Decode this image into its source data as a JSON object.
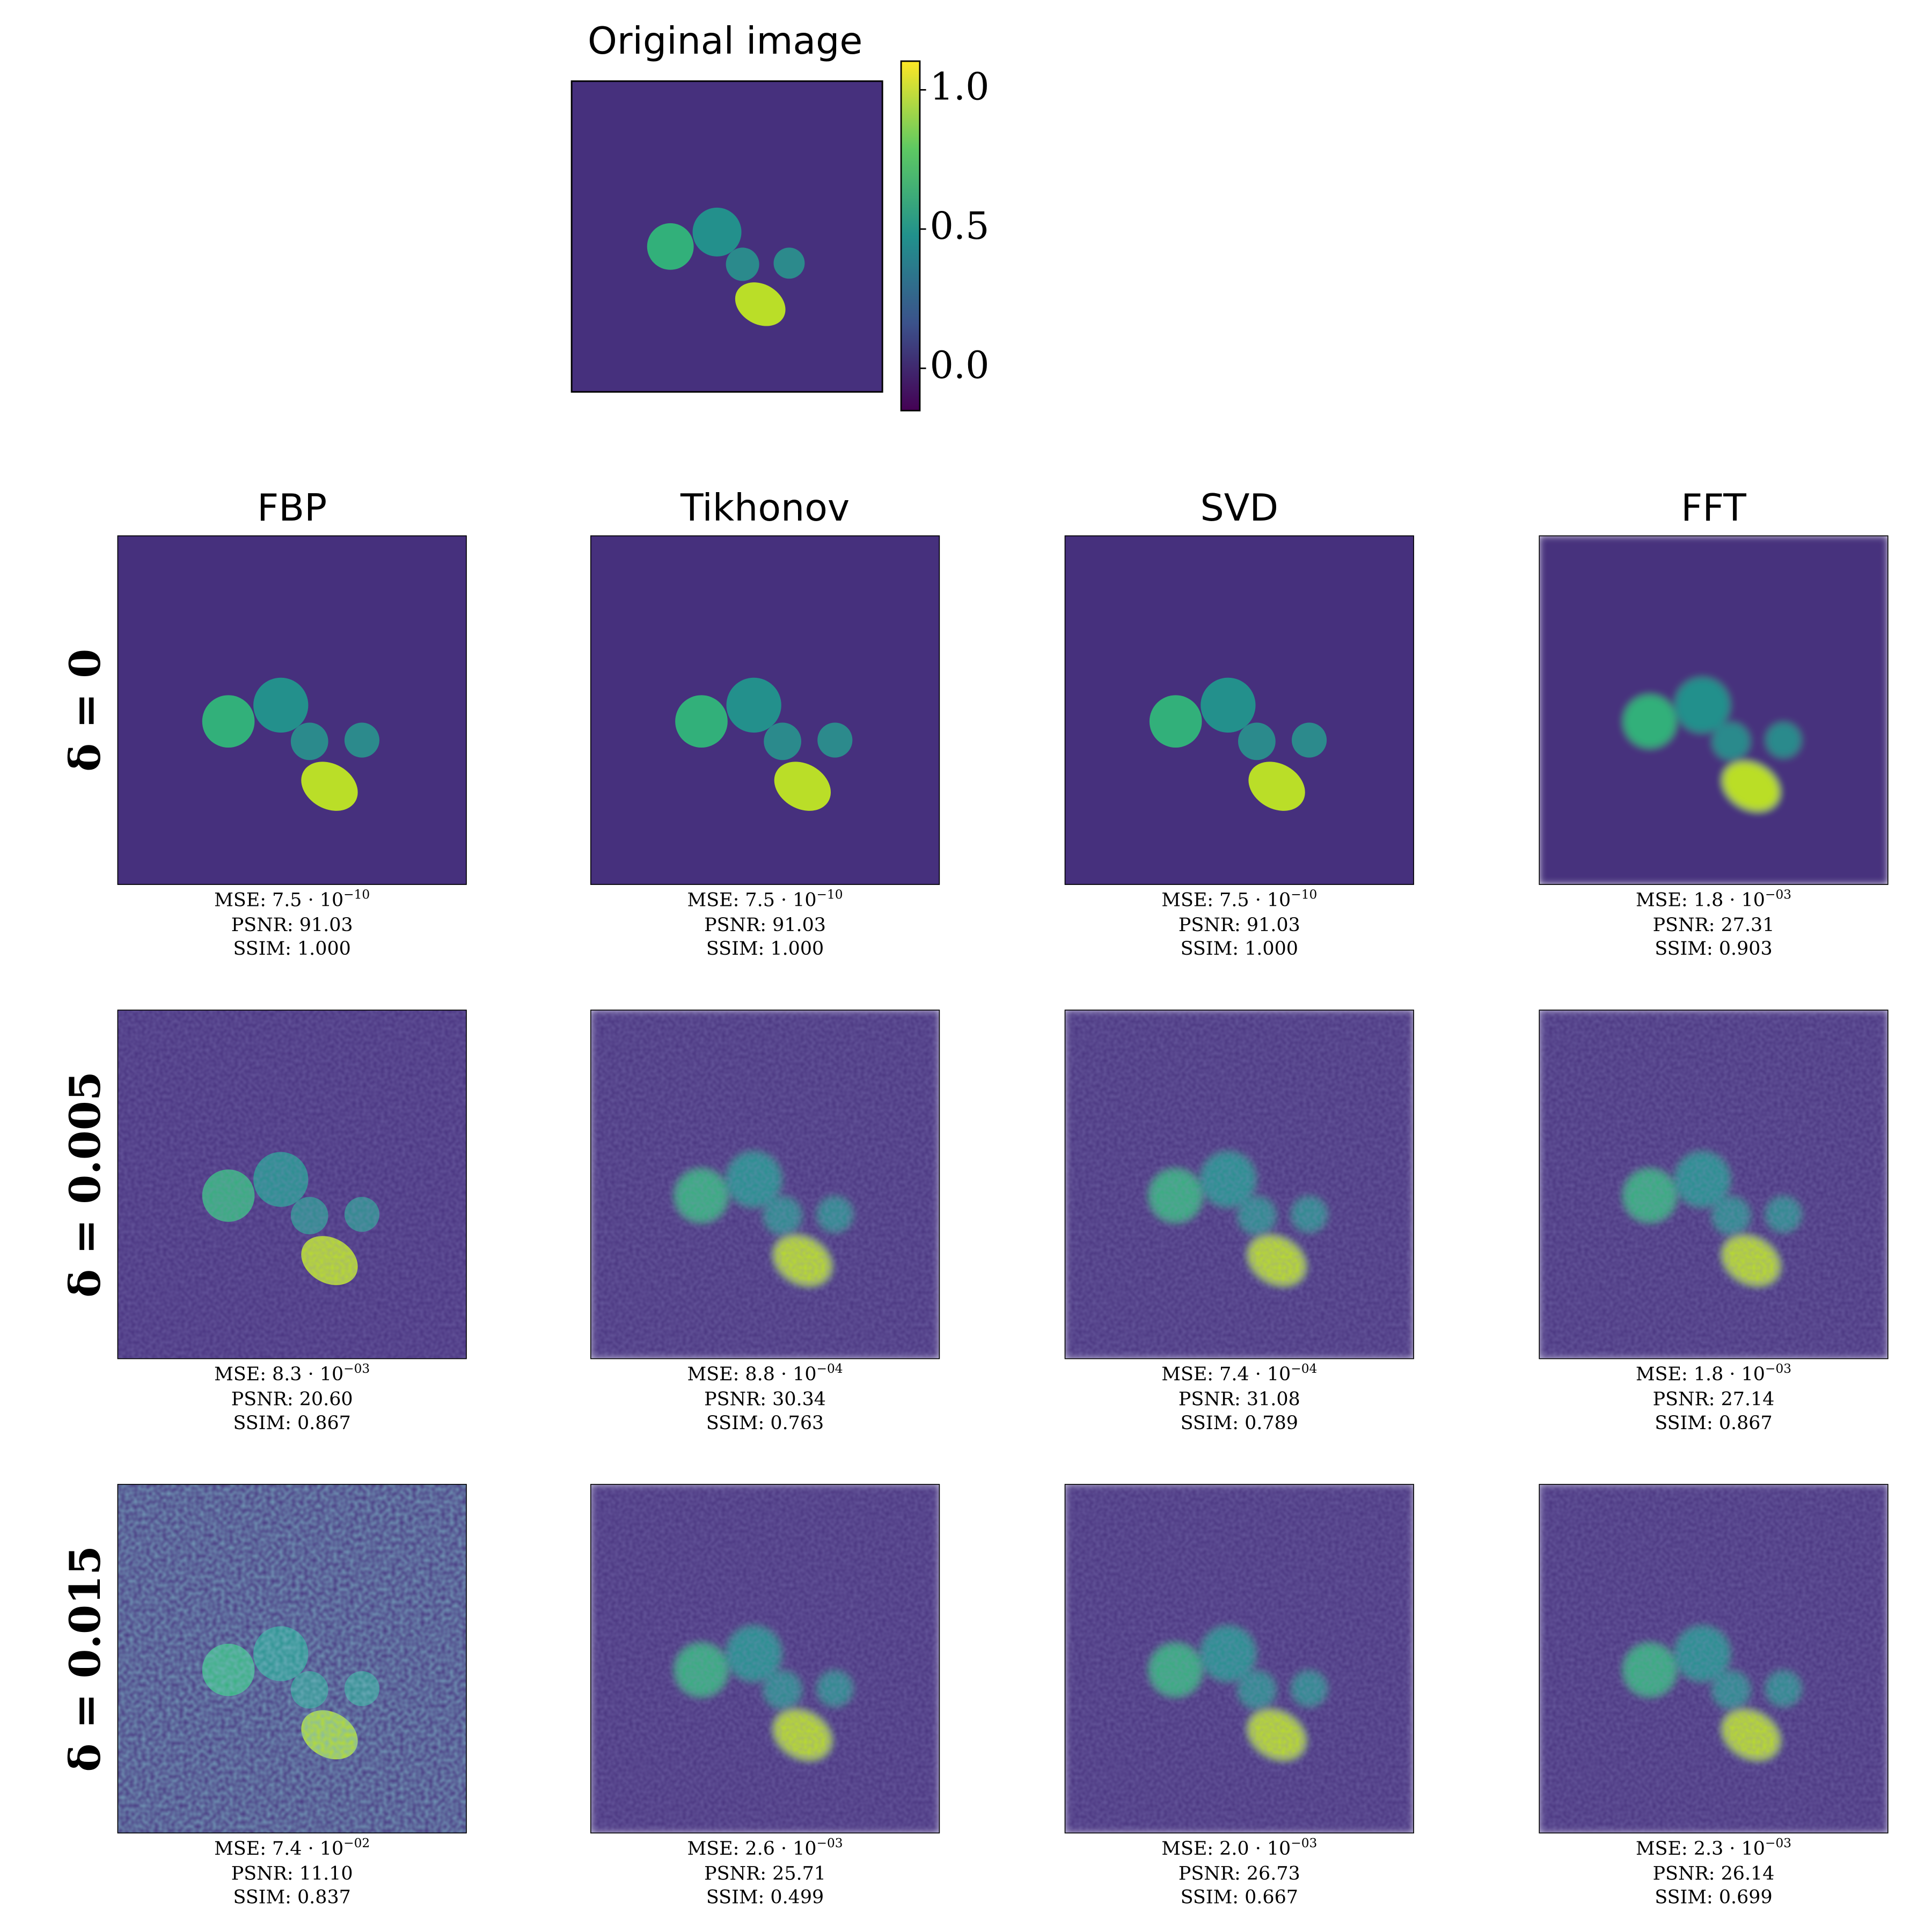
{
  "original": {
    "title": "Original image",
    "colorbar": {
      "lim": [
        -0.152,
        1.103
      ],
      "ticks": [
        {
          "value": 1,
          "label": "1.0"
        },
        {
          "value": 0.5,
          "label": "0.5"
        },
        {
          "value": 0,
          "label": "0.0"
        }
      ]
    }
  },
  "columns": [
    "FBP",
    "Tikhonov",
    "SVD",
    "FFT"
  ],
  "rows": [
    {
      "label": "δ = 0",
      "cells": [
        {
          "mse": "MSE: 7.5 · 10",
          "mse_exp": "−10",
          "psnr": "PSNR: 91.03",
          "ssim": "SSIM: 1.000"
        },
        {
          "mse": "MSE: 7.5 · 10",
          "mse_exp": "−10",
          "psnr": "PSNR: 91.03",
          "ssim": "SSIM: 1.000"
        },
        {
          "mse": "MSE: 7.5 · 10",
          "mse_exp": "−10",
          "psnr": "PSNR: 91.03",
          "ssim": "SSIM: 1.000"
        },
        {
          "mse": "MSE: 1.8 · 10",
          "mse_exp": "−03",
          "psnr": "PSNR: 27.31",
          "ssim": "SSIM: 0.903"
        }
      ]
    },
    {
      "label": "δ = 0.005",
      "cells": [
        {
          "mse": "MSE: 8.3 · 10",
          "mse_exp": "−03",
          "psnr": "PSNR: 20.60",
          "ssim": "SSIM: 0.867"
        },
        {
          "mse": "MSE: 8.8 · 10",
          "mse_exp": "−04",
          "psnr": "PSNR: 30.34",
          "ssim": "SSIM: 0.763"
        },
        {
          "mse": "MSE: 7.4 · 10",
          "mse_exp": "−04",
          "psnr": "PSNR: 31.08",
          "ssim": "SSIM: 0.789"
        },
        {
          "mse": "MSE: 1.8 · 10",
          "mse_exp": "−03",
          "psnr": "PSNR: 27.14",
          "ssim": "SSIM: 0.867"
        }
      ]
    },
    {
      "label": "δ = 0.015",
      "cells": [
        {
          "mse": "MSE: 7.4 · 10",
          "mse_exp": "−02",
          "psnr": "PSNR: 11.10",
          "ssim": "SSIM: 0.837"
        },
        {
          "mse": "MSE: 2.6 · 10",
          "mse_exp": "−03",
          "psnr": "PSNR: 25.71",
          "ssim": "SSIM: 0.499"
        },
        {
          "mse": "MSE: 2.0 · 10",
          "mse_exp": "−03",
          "psnr": "PSNR: 26.73",
          "ssim": "SSIM: 0.667"
        },
        {
          "mse": "MSE: 2.3 · 10",
          "mse_exp": "−03",
          "psnr": "PSNR: 26.14",
          "ssim": "SSIM: 0.699"
        }
      ]
    }
  ]
}
